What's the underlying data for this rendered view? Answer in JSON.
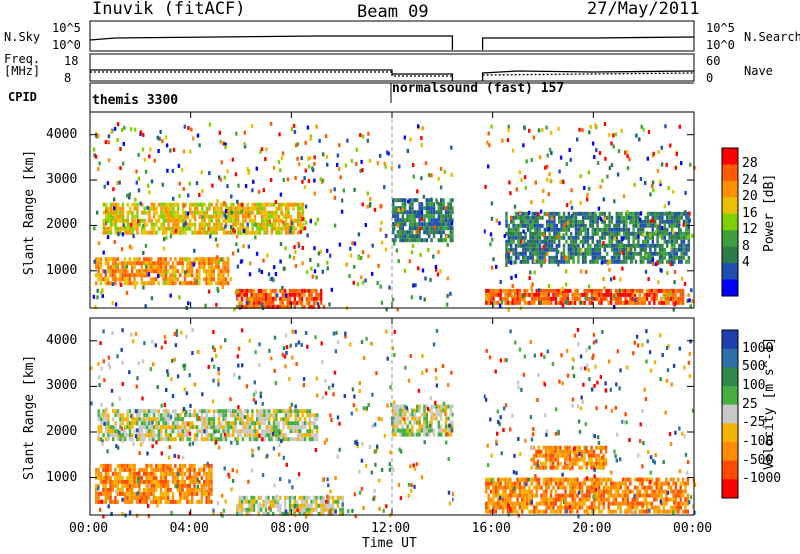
{
  "header": {
    "title": "Inuvik (fitACF)",
    "beam": "Beam 09",
    "date": "27/May/2011"
  },
  "top_panels": {
    "nsky_label": "N.Sky",
    "nsky_ticks": [
      "10^5",
      "10^0"
    ],
    "nsearch_label": "N.Search",
    "freq_label_line1": "Freq.",
    "freq_label_line2": "[MHz]",
    "freq_ticks": [
      "18",
      "8"
    ],
    "nave_label": "Nave",
    "nave_ticks": [
      "60",
      "0"
    ],
    "cpid_label": "CPID",
    "cpid_segments": [
      "themis 3300",
      "normalsound (fast) 157"
    ]
  },
  "x_axis": {
    "label": "Time UT",
    "ticks": [
      "00:00",
      "04:00",
      "08:00",
      "12:00",
      "16:00",
      "20:00",
      "00:00"
    ]
  },
  "power_panel": {
    "ylabel": "Slant Range [km]",
    "yticks": [
      "1000",
      "2000",
      "3000",
      "4000"
    ],
    "colorbar_label": "Power [dB]",
    "colorbar_ticks": [
      "28",
      "24",
      "20",
      "16",
      "12",
      "8",
      "4"
    ],
    "colors": [
      "#0000ff",
      "#1f4fb0",
      "#2f7a4a",
      "#3ca03c",
      "#7fd000",
      "#e8c000",
      "#ff9000",
      "#ff5a00",
      "#ff0000"
    ]
  },
  "velocity_panel": {
    "ylabel": "Slant Range [km]",
    "yticks": [
      "1000",
      "2000",
      "3000",
      "4000"
    ],
    "colorbar_label": "Velocity [m s^-1]",
    "colorbar_ticks": [
      "1000",
      "500",
      "100",
      "25",
      "-25",
      "-100",
      "-500",
      "-1000"
    ],
    "colors": [
      "#1f3fb0",
      "#2f6fa8",
      "#2e8a4a",
      "#44b044",
      "#c8c8c8",
      "#f2b400",
      "#ff8a00",
      "#ff4a00",
      "#ff0000"
    ]
  },
  "chart_data": [
    {
      "type": "heatmap",
      "title": "Power [dB]",
      "xlabel": "Time UT",
      "ylabel": "Slant Range [km]",
      "x_range": [
        "00:00",
        "24:00"
      ],
      "y_range": [
        180,
        4500
      ],
      "colorbar_range": [
        0,
        32
      ],
      "colorbar_ticks": [
        4,
        8,
        12,
        16,
        20,
        24,
        28
      ],
      "regions": [
        {
          "t_start": 5.8,
          "t_end": 9.2,
          "range_start": 200,
          "range_end": 600,
          "value": 28
        },
        {
          "t_start": 0.2,
          "t_end": 5.5,
          "range_start": 700,
          "range_end": 1300,
          "value": 22
        },
        {
          "t_start": 0.5,
          "t_end": 8.5,
          "range_start": 1800,
          "range_end": 2500,
          "value": 20
        },
        {
          "t_start": 15.7,
          "t_end": 23.6,
          "range_start": 250,
          "range_end": 600,
          "value": 28
        },
        {
          "t_start": 12.0,
          "t_end": 14.4,
          "range_start": 1700,
          "range_end": 2600,
          "value": 8
        },
        {
          "t_start": 16.5,
          "t_end": 23.8,
          "range_start": 1200,
          "range_end": 2300,
          "value": 8
        }
      ]
    },
    {
      "type": "heatmap",
      "title": "Velocity [m s^-1]",
      "xlabel": "Time UT",
      "ylabel": "Slant Range [km]",
      "x_range": [
        "00:00",
        "24:00"
      ],
      "y_range": [
        180,
        4500
      ],
      "colorbar_ticks": [
        -1000,
        -500,
        -100,
        -25,
        25,
        100,
        500,
        1000
      ],
      "regions": [
        {
          "t_start": 0.3,
          "t_end": 9.0,
          "range_start": 1800,
          "range_end": 2500,
          "value": 0
        },
        {
          "t_start": 5.8,
          "t_end": 10.0,
          "range_start": 200,
          "range_end": 600,
          "value": 0
        },
        {
          "t_start": 0.2,
          "t_end": 4.8,
          "range_start": 500,
          "range_end": 1300,
          "value": -200
        },
        {
          "t_start": 15.7,
          "t_end": 23.8,
          "range_start": 250,
          "range_end": 1000,
          "value": -300
        },
        {
          "t_start": 17.5,
          "t_end": 20.5,
          "range_start": 1200,
          "range_end": 1700,
          "value": -150
        },
        {
          "t_start": 12.0,
          "t_end": 14.4,
          "range_start": 1900,
          "range_end": 2600,
          "value": 0
        }
      ]
    }
  ]
}
